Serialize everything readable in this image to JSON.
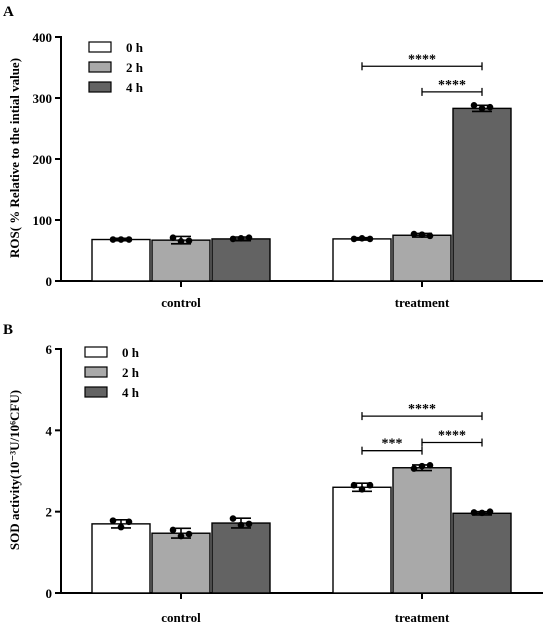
{
  "chart_data": [
    {
      "panel": "A",
      "type": "bar",
      "ylabel": "ROS( % Relative to the intial value)",
      "ylim": [
        0,
        400
      ],
      "yticks": [
        "0",
        "100",
        "200",
        "300",
        "400"
      ],
      "categories": [
        "control",
        "treatment"
      ],
      "series": [
        {
          "name": "0 h",
          "values": [
            68,
            69
          ],
          "errors": [
            2,
            2
          ],
          "points": [
            [
              68,
              68,
              68
            ],
            [
              69,
              70,
              69
            ]
          ]
        },
        {
          "name": "2 h",
          "values": [
            67,
            75
          ],
          "errors": [
            6,
            3
          ],
          "points": [
            [
              71,
              65,
              66
            ],
            [
              77,
              76,
              74
            ]
          ]
        },
        {
          "name": "4 h",
          "values": [
            69,
            283
          ],
          "errors": [
            3,
            5
          ],
          "points": [
            [
              69,
              70,
              71
            ],
            [
              288,
              283,
              285
            ]
          ]
        }
      ],
      "significance": [
        {
          "label": "****",
          "category": 1,
          "from": 0,
          "to": 2,
          "y": 352
        },
        {
          "label": "****",
          "category": 1,
          "from": 1,
          "to": 2,
          "y": 310
        }
      ],
      "legend_position": "top-left"
    },
    {
      "panel": "B",
      "type": "bar",
      "ylabel": "SOD activity(10⁻³U/10⁶CFU)",
      "ylim": [
        0,
        6
      ],
      "yticks": [
        "0",
        "2",
        "4",
        "6"
      ],
      "categories": [
        "control",
        "treatment"
      ],
      "series": [
        {
          "name": "0 h",
          "values": [
            1.7,
            2.6
          ],
          "errors": [
            0.1,
            0.1
          ],
          "points": [
            [
              1.78,
              1.62,
              1.75
            ],
            [
              2.65,
              2.55,
              2.65
            ]
          ]
        },
        {
          "name": "2 h",
          "values": [
            1.47,
            3.08
          ],
          "errors": [
            0.12,
            0.07
          ],
          "points": [
            [
              1.55,
              1.4,
              1.45
            ],
            [
              3.06,
              3.12,
              3.14
            ]
          ]
        },
        {
          "name": "4 h",
          "values": [
            1.72,
            1.96
          ],
          "errors": [
            0.12,
            0.04
          ],
          "points": [
            [
              1.83,
              1.67,
              1.7
            ],
            [
              1.98,
              1.97,
              2.0
            ]
          ]
        }
      ],
      "significance": [
        {
          "label": "****",
          "category": 1,
          "from": 0,
          "to": 2,
          "y": 4.35
        },
        {
          "label": "***",
          "category": 1,
          "from": 0,
          "to": 1,
          "y": 3.5
        },
        {
          "label": "****",
          "category": 1,
          "from": 1,
          "to": 2,
          "y": 3.7
        }
      ],
      "legend_position": "top-left"
    }
  ],
  "colors": {
    "0 h": "#ffffff",
    "2 h": "#a9a9a9",
    "4 h": "#636363"
  }
}
